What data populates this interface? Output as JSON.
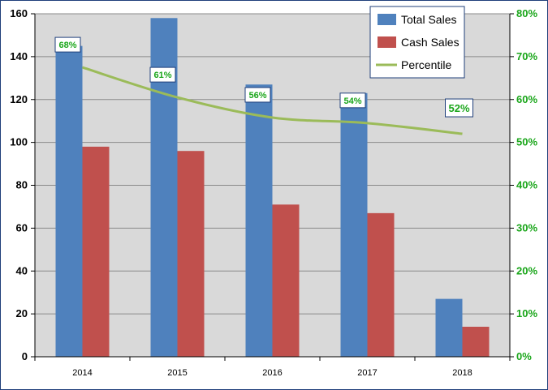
{
  "chart_data": {
    "type": "bar",
    "categories": [
      "2014",
      "2015",
      "2016",
      "2017",
      "2018"
    ],
    "series": [
      {
        "name": "Total Sales",
        "type": "bar",
        "axis": "left",
        "color": "#4f81bd",
        "values": [
          145,
          158,
          127,
          123,
          27
        ]
      },
      {
        "name": "Cash Sales",
        "type": "bar",
        "axis": "left",
        "color": "#c0504d",
        "values": [
          98,
          96,
          71,
          67,
          14
        ]
      },
      {
        "name": "Percentile",
        "type": "line",
        "axis": "right",
        "color": "#9bbb59",
        "values": [
          0.675,
          0.605,
          0.558,
          0.545,
          0.52
        ],
        "labels": [
          "68%",
          "61%",
          "56%",
          "54%",
          "52%"
        ]
      }
    ],
    "ylim": [
      0,
      160
    ],
    "yticks": [
      "0",
      "20",
      "40",
      "60",
      "80",
      "100",
      "120",
      "140",
      "160"
    ],
    "y2lim": [
      0,
      0.8
    ],
    "y2ticks": [
      "0%",
      "10%",
      "20%",
      "30%",
      "40%",
      "50%",
      "60%",
      "70%",
      "80%"
    ],
    "grid": true,
    "legend": "top-right",
    "plot_background": "#d9d9d9",
    "label_color": "#1aa61a"
  }
}
